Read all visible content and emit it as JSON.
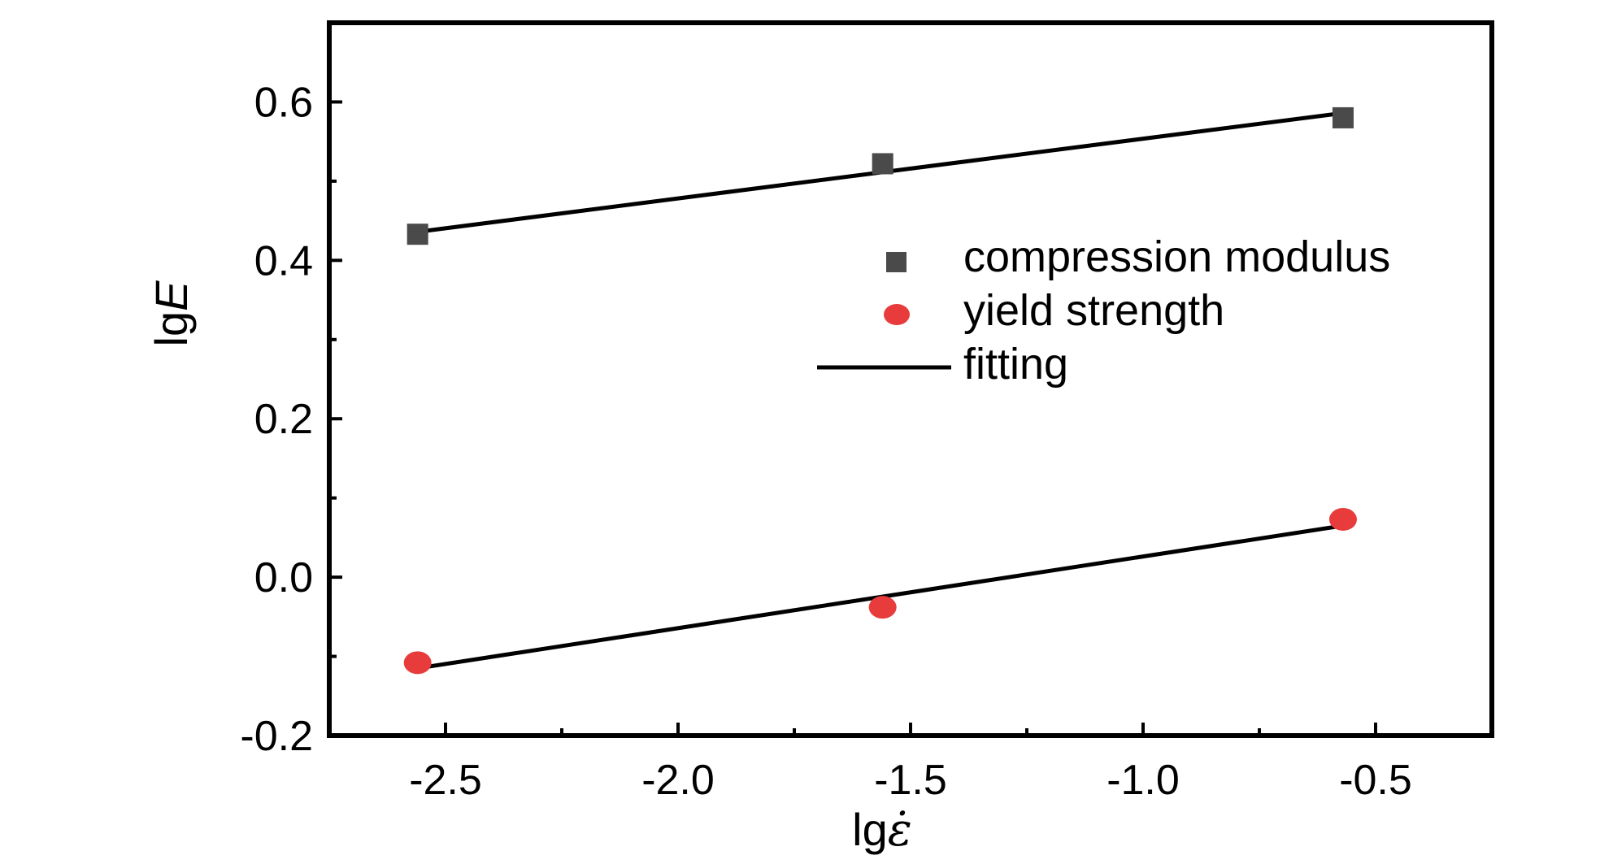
{
  "chart_data": {
    "type": "scatter",
    "title": "",
    "xlabel": {
      "prefix": "lg",
      "symbol": "ε̇"
    },
    "ylabel": {
      "prefix": "lg",
      "symbol": "E"
    },
    "xlim": [
      -2.75,
      -0.25
    ],
    "ylim": [
      -0.2,
      0.7
    ],
    "x_ticks": [
      -2.5,
      -2.0,
      -1.5,
      -1.0,
      -0.5
    ],
    "x_tick_labels": [
      "-2.5",
      "-2.0",
      "-1.5",
      "-1.0",
      "-0.5"
    ],
    "y_ticks": [
      -0.2,
      0.0,
      0.2,
      0.4,
      0.6
    ],
    "y_tick_labels": [
      "-0.2",
      "0.0",
      "0.2",
      "0.4",
      "0.6"
    ],
    "grid": false,
    "legend_position": "center-right",
    "series": [
      {
        "name": "compression modulus",
        "marker": "square",
        "color": "#4a4a4a",
        "x": [
          -2.56,
          -1.56,
          -0.57
        ],
        "y": [
          0.433,
          0.522,
          0.58
        ]
      },
      {
        "name": "yield strength",
        "marker": "circle",
        "color": "#e83c3c",
        "x": [
          -2.56,
          -1.56,
          -0.57
        ],
        "y": [
          -0.108,
          -0.038,
          0.073
        ]
      }
    ],
    "fits": [
      {
        "name": "fitting",
        "color": "#000000",
        "x": [
          -2.56,
          -0.57
        ],
        "y": [
          0.436,
          0.586
        ]
      },
      {
        "name": "fitting",
        "color": "#000000",
        "x": [
          -2.56,
          -0.57
        ],
        "y": [
          -0.115,
          0.065
        ]
      }
    ],
    "legend": [
      {
        "label": "compression modulus",
        "marker": "square",
        "color": "#4a4a4a"
      },
      {
        "label": "yield strength",
        "marker": "circle",
        "color": "#e83c3c"
      },
      {
        "label": "fitting",
        "marker": "line",
        "color": "#000000"
      }
    ]
  }
}
